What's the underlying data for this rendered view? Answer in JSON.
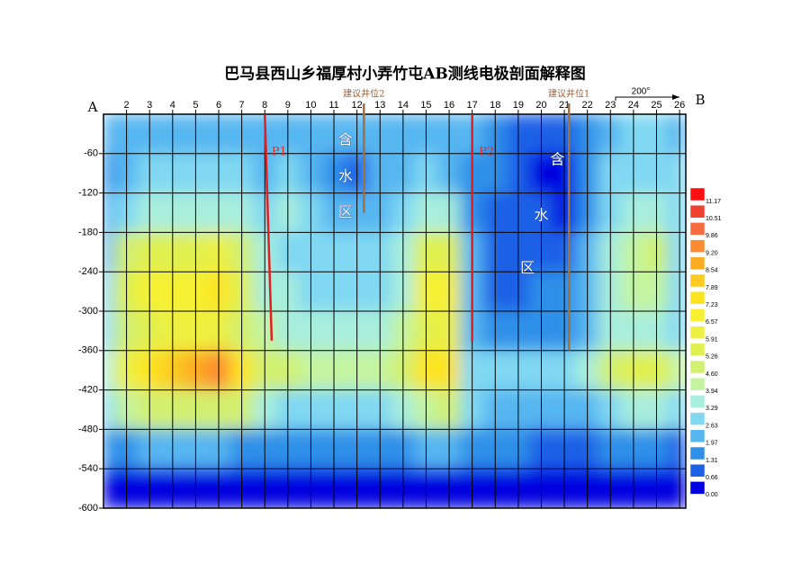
{
  "chart_data": {
    "type": "contour",
    "title": "巴马县西山乡福厚村小弄竹屯AB测线电极剖面解释图",
    "start_label": "A",
    "end_label": "B",
    "bearing": "200°",
    "xlim": [
      1,
      26.27
    ],
    "ylim": [
      -600,
      0
    ],
    "xticks": [
      2,
      3,
      4,
      5,
      6,
      7,
      8,
      9,
      10,
      11,
      12,
      13,
      14,
      15,
      16,
      17,
      18,
      19,
      20,
      21,
      22,
      23,
      24,
      25,
      26
    ],
    "yticks": [
      -60,
      -120,
      -180,
      -240,
      -300,
      -360,
      -420,
      -480,
      -540,
      -600
    ],
    "grid": true,
    "x": [
      1,
      2,
      3,
      4,
      5,
      6,
      7,
      8,
      9,
      10,
      11,
      12,
      13,
      14,
      15,
      16,
      17,
      18,
      19,
      20,
      21,
      22,
      23,
      24,
      25,
      26
    ],
    "y": [
      -30,
      -90,
      -150,
      -210,
      -270,
      -330,
      -390,
      -450,
      -510,
      -570
    ],
    "z": [
      [
        2.4,
        2.2,
        2.0,
        2.2,
        2.6,
        2.4,
        2.6,
        2.3,
        2.6,
        2.3,
        2.0,
        2.2,
        2.5,
        2.4,
        2.6,
        2.5,
        2.0,
        1.6,
        1.3,
        1.2,
        1.3,
        1.8,
        2.6,
        2.8,
        3.0,
        2.6
      ],
      [
        1.6,
        2.0,
        2.8,
        3.0,
        3.0,
        2.9,
        2.8,
        2.4,
        3.2,
        2.3,
        1.4,
        1.3,
        2.2,
        2.6,
        2.7,
        2.6,
        1.8,
        1.6,
        1.3,
        0.6,
        0.5,
        1.5,
        2.7,
        2.9,
        3.1,
        2.7
      ],
      [
        2.0,
        3.2,
        3.6,
        3.8,
        3.7,
        3.6,
        3.4,
        3.0,
        3.3,
        2.7,
        2.5,
        2.4,
        2.6,
        3.0,
        3.6,
        3.6,
        1.6,
        1.0,
        1.2,
        1.2,
        0.6,
        1.8,
        2.9,
        3.4,
        3.6,
        3.0
      ],
      [
        2.6,
        4.8,
        5.6,
        5.8,
        5.8,
        6.2,
        5.0,
        3.4,
        3.2,
        3.0,
        3.0,
        2.9,
        3.0,
        3.3,
        5.6,
        5.8,
        2.0,
        1.2,
        1.3,
        1.2,
        1.3,
        2.0,
        3.6,
        4.4,
        4.6,
        3.2
      ],
      [
        3.0,
        5.6,
        6.6,
        6.8,
        6.8,
        7.4,
        5.6,
        3.6,
        3.4,
        3.2,
        3.2,
        3.0,
        3.2,
        3.6,
        6.6,
        6.8,
        2.2,
        1.3,
        1.0,
        1.5,
        1.5,
        2.2,
        3.4,
        4.0,
        4.0,
        3.2
      ],
      [
        3.2,
        5.2,
        5.8,
        6.0,
        6.0,
        6.2,
        5.2,
        4.0,
        3.8,
        3.6,
        3.6,
        3.4,
        3.6,
        4.0,
        5.8,
        6.2,
        2.4,
        1.5,
        1.6,
        1.6,
        1.6,
        2.4,
        3.4,
        3.8,
        3.8,
        3.2
      ],
      [
        3.8,
        6.4,
        7.6,
        8.2,
        9.0,
        9.8,
        7.4,
        5.0,
        4.6,
        4.4,
        4.4,
        4.3,
        4.4,
        4.8,
        7.4,
        7.6,
        3.2,
        2.8,
        3.0,
        3.0,
        3.0,
        3.4,
        4.6,
        5.4,
        5.4,
        4.0
      ],
      [
        3.2,
        4.2,
        4.8,
        5.0,
        5.2,
        5.2,
        4.6,
        3.4,
        3.2,
        3.0,
        3.0,
        2.9,
        3.0,
        3.4,
        4.4,
        4.6,
        2.8,
        2.6,
        2.6,
        2.4,
        2.4,
        2.6,
        3.0,
        3.4,
        3.4,
        3.0
      ],
      [
        1.6,
        1.8,
        2.0,
        2.0,
        2.0,
        2.0,
        1.9,
        1.8,
        1.9,
        1.7,
        1.8,
        1.8,
        1.7,
        1.9,
        2.2,
        2.2,
        1.6,
        1.4,
        1.4,
        1.0,
        0.9,
        1.2,
        1.6,
        1.6,
        1.4,
        1.2
      ],
      [
        0.3,
        0.4,
        0.4,
        0.4,
        0.5,
        0.4,
        0.4,
        0.3,
        0.3,
        0.3,
        0.3,
        0.3,
        0.3,
        0.3,
        0.4,
        0.4,
        0.3,
        0.3,
        0.3,
        0.3,
        0.3,
        0.3,
        0.3,
        0.3,
        0.3,
        0.3
      ]
    ],
    "colorbar": {
      "levels": [
        11.17,
        10.51,
        9.86,
        {
          "value": 9.2,
          "label": "9.20"
        },
        8.54,
        7.89,
        7.23,
        6.57,
        5.91,
        5.26,
        {
          "value": 4.6,
          "label": "4.60"
        },
        3.94,
        3.29,
        2.63,
        1.97,
        1.31,
        0.66,
        {
          "value": 0,
          "label": "0.00"
        }
      ],
      "colors": [
        "#ff1010",
        "#f04030",
        "#f86a40",
        "#fc8a30",
        "#fcac20",
        "#fcca20",
        "#fce420",
        "#f6f030",
        "#eef040",
        "#e0f050",
        "#d2f070",
        "#c4f4a0",
        "#a8eedc",
        "#80d8f2",
        "#56b6f0",
        "#2e90e8",
        "#1a60e6",
        "#0000e0"
      ]
    },
    "wells": [
      {
        "label": "建议井位2",
        "x": 12.3,
        "depth": -150
      },
      {
        "label": "建议井位1",
        "x": 21.2,
        "depth": -360
      }
    ],
    "profiles": [
      {
        "label": "P1",
        "x": 8.0,
        "x_end": 8.3,
        "depth": -345
      },
      {
        "label": "P2",
        "x": 17.0,
        "x_end": 17.0,
        "depth": -345
      }
    ],
    "water_zone": [
      {
        "text": "含",
        "x": 11.5,
        "y": -40
      },
      {
        "text": "水",
        "x": 11.5,
        "y": -95
      },
      {
        "text": "区",
        "x": 11.5,
        "y": -150
      },
      {
        "text": "含",
        "x": 20.7,
        "y": -70
      },
      {
        "text": "水",
        "x": 20.0,
        "y": -155
      },
      {
        "text": "区",
        "x": 19.4,
        "y": -235
      }
    ]
  }
}
